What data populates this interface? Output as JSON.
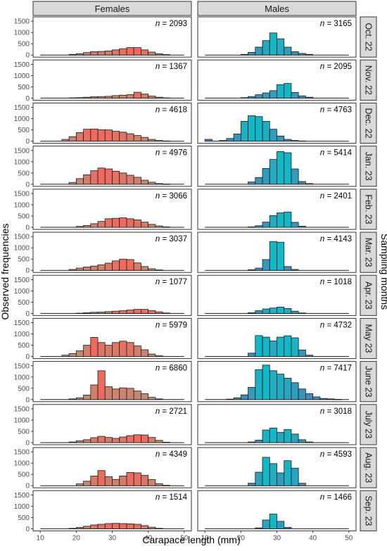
{
  "chart_data": {
    "type": "bar",
    "xlabel": "Carapace length (mm)",
    "ylabel": "Observed frequencies",
    "right_label": "Sampling months",
    "x_ticks": [
      10,
      20,
      30,
      40,
      50
    ],
    "y_ticks": [
      0,
      500,
      1000,
      1500
    ],
    "xlim": [
      8,
      52
    ],
    "ylim": [
      0,
      1600
    ],
    "bin_width": 2,
    "bins": [
      10,
      12,
      14,
      16,
      18,
      20,
      22,
      24,
      26,
      28,
      30,
      32,
      34,
      36,
      38,
      40,
      42,
      44,
      46,
      48
    ],
    "columns": [
      "Females",
      "Males"
    ],
    "rows": [
      "Oct. 22",
      "Nov. 22",
      "Dec. 22",
      "Jan. 23",
      "Feb. 23",
      "Mar. 23",
      "Apr. 23",
      "May 23",
      "June 23",
      "July 23",
      "Aug. 23",
      "Sep. 23"
    ],
    "n_prefix": "n",
    "colors": {
      "females_low": "#b4957a",
      "females_high": "#ee6a5e",
      "males_low": "#4a86b5",
      "males_high": "#13b8c6",
      "strip_bg": "#d9d9d9"
    },
    "panels": [
      {
        "month": "Oct. 22",
        "females": {
          "n": "2093",
          "values": [
            0,
            0,
            0,
            0,
            30,
            60,
            110,
            150,
            160,
            180,
            230,
            280,
            330,
            330,
            230,
            130,
            60,
            20,
            0,
            0
          ]
        },
        "males": {
          "n": "3165",
          "values": [
            0,
            0,
            0,
            0,
            0,
            30,
            120,
            350,
            640,
            980,
            720,
            350,
            150,
            70,
            30,
            0,
            0,
            0,
            0,
            0
          ]
        }
      },
      {
        "month": "Nov. 22",
        "females": {
          "n": "1367",
          "values": [
            0,
            0,
            0,
            0,
            10,
            20,
            40,
            60,
            70,
            80,
            110,
            130,
            150,
            260,
            180,
            90,
            40,
            10,
            0,
            0
          ]
        },
        "males": {
          "n": "2095",
          "values": [
            0,
            0,
            0,
            0,
            0,
            20,
            70,
            150,
            230,
            330,
            600,
            650,
            250,
            100,
            40,
            0,
            0,
            0,
            0,
            0
          ]
        }
      },
      {
        "month": "Dec. 22",
        "females": {
          "n": "4618",
          "values": [
            0,
            0,
            0,
            80,
            200,
            380,
            530,
            540,
            510,
            500,
            440,
            400,
            330,
            250,
            170,
            80,
            30,
            10,
            0,
            0
          ]
        },
        "males": {
          "n": "4763",
          "values": [
            80,
            0,
            30,
            120,
            320,
            880,
            1130,
            1090,
            880,
            530,
            230,
            80,
            30,
            10,
            0,
            0,
            0,
            0,
            0,
            0
          ]
        }
      },
      {
        "month": "Jan. 23",
        "females": {
          "n": "4976",
          "values": [
            0,
            0,
            0,
            0,
            80,
            250,
            420,
            600,
            720,
            680,
            580,
            500,
            400,
            310,
            180,
            90,
            30,
            10,
            0,
            0
          ]
        },
        "males": {
          "n": "5414",
          "values": [
            0,
            0,
            0,
            0,
            0,
            0,
            100,
            300,
            700,
            1100,
            1450,
            1400,
            680,
            120,
            30,
            0,
            0,
            0,
            0,
            0
          ]
        }
      },
      {
        "month": "Feb. 23",
        "females": {
          "n": "3066",
          "values": [
            0,
            0,
            0,
            0,
            0,
            40,
            80,
            160,
            260,
            380,
            400,
            420,
            380,
            330,
            230,
            130,
            60,
            20,
            0,
            0
          ]
        },
        "males": {
          "n": "2401",
          "values": [
            0,
            0,
            0,
            0,
            0,
            0,
            20,
            70,
            230,
            520,
            640,
            680,
            220,
            50,
            0,
            0,
            0,
            0,
            0,
            0
          ]
        }
      },
      {
        "month": "Mar. 23",
        "females": {
          "n": "3037",
          "values": [
            0,
            0,
            0,
            0,
            40,
            100,
            150,
            190,
            250,
            320,
            420,
            500,
            480,
            330,
            170,
            70,
            20,
            0,
            0,
            0
          ]
        },
        "males": {
          "n": "4143",
          "values": [
            0,
            0,
            0,
            0,
            0,
            0,
            30,
            100,
            480,
            1280,
            1250,
            170,
            40,
            0,
            0,
            0,
            0,
            0,
            0,
            0
          ]
        }
      },
      {
        "month": "Apr. 23",
        "females": {
          "n": "1077",
          "values": [
            0,
            0,
            0,
            0,
            0,
            10,
            30,
            50,
            60,
            80,
            100,
            120,
            150,
            180,
            180,
            130,
            70,
            20,
            0,
            0
          ]
        },
        "males": {
          "n": "1018",
          "values": [
            0,
            0,
            0,
            0,
            0,
            0,
            30,
            120,
            200,
            240,
            280,
            220,
            100,
            20,
            0,
            0,
            0,
            0,
            0,
            0
          ]
        }
      },
      {
        "month": "May 23",
        "females": {
          "n": "5979",
          "values": [
            0,
            0,
            0,
            60,
            130,
            250,
            500,
            850,
            620,
            500,
            620,
            680,
            620,
            470,
            300,
            110,
            30,
            0,
            0,
            0
          ]
        },
        "males": {
          "n": "4732",
          "values": [
            0,
            0,
            0,
            0,
            0,
            0,
            150,
            930,
            860,
            690,
            860,
            920,
            830,
            290,
            60,
            0,
            0,
            0,
            0,
            0
          ]
        }
      },
      {
        "month": "June 23",
        "females": {
          "n": "6860",
          "values": [
            0,
            0,
            0,
            0,
            30,
            80,
            200,
            650,
            1280,
            570,
            470,
            520,
            500,
            380,
            260,
            100,
            30,
            0,
            0,
            0
          ]
        },
        "males": {
          "n": "7417",
          "values": [
            0,
            0,
            0,
            20,
            80,
            210,
            540,
            1330,
            1530,
            1280,
            1130,
            950,
            750,
            470,
            260,
            120,
            50,
            30,
            10,
            0
          ]
        }
      },
      {
        "month": "July 23",
        "females": {
          "n": "2721",
          "values": [
            0,
            0,
            0,
            0,
            30,
            80,
            130,
            220,
            280,
            230,
            190,
            250,
            310,
            350,
            340,
            230,
            100,
            20,
            0,
            0
          ]
        },
        "males": {
          "n": "3018",
          "values": [
            0,
            0,
            0,
            0,
            0,
            0,
            30,
            110,
            560,
            650,
            460,
            580,
            380,
            130,
            30,
            0,
            0,
            0,
            0,
            0
          ]
        }
      },
      {
        "month": "Aug. 23",
        "females": {
          "n": "4349",
          "values": [
            0,
            0,
            0,
            0,
            0,
            80,
            200,
            430,
            670,
            400,
            280,
            430,
            590,
            570,
            460,
            270,
            90,
            20,
            0,
            0
          ]
        },
        "males": {
          "n": "4593",
          "values": [
            0,
            0,
            0,
            0,
            0,
            0,
            110,
            600,
            1260,
            980,
            570,
            1110,
            780,
            110,
            0,
            0,
            0,
            0,
            0,
            0
          ]
        }
      },
      {
        "month": "Sep. 23",
        "females": {
          "n": "1514",
          "values": [
            0,
            0,
            0,
            0,
            20,
            60,
            110,
            170,
            200,
            230,
            240,
            230,
            220,
            200,
            140,
            70,
            20,
            0,
            0,
            0
          ]
        },
        "males": {
          "n": "1466",
          "values": [
            0,
            0,
            0,
            0,
            0,
            0,
            0,
            40,
            390,
            650,
            330,
            60,
            0,
            0,
            0,
            0,
            0,
            0,
            0,
            0
          ]
        }
      }
    ]
  }
}
